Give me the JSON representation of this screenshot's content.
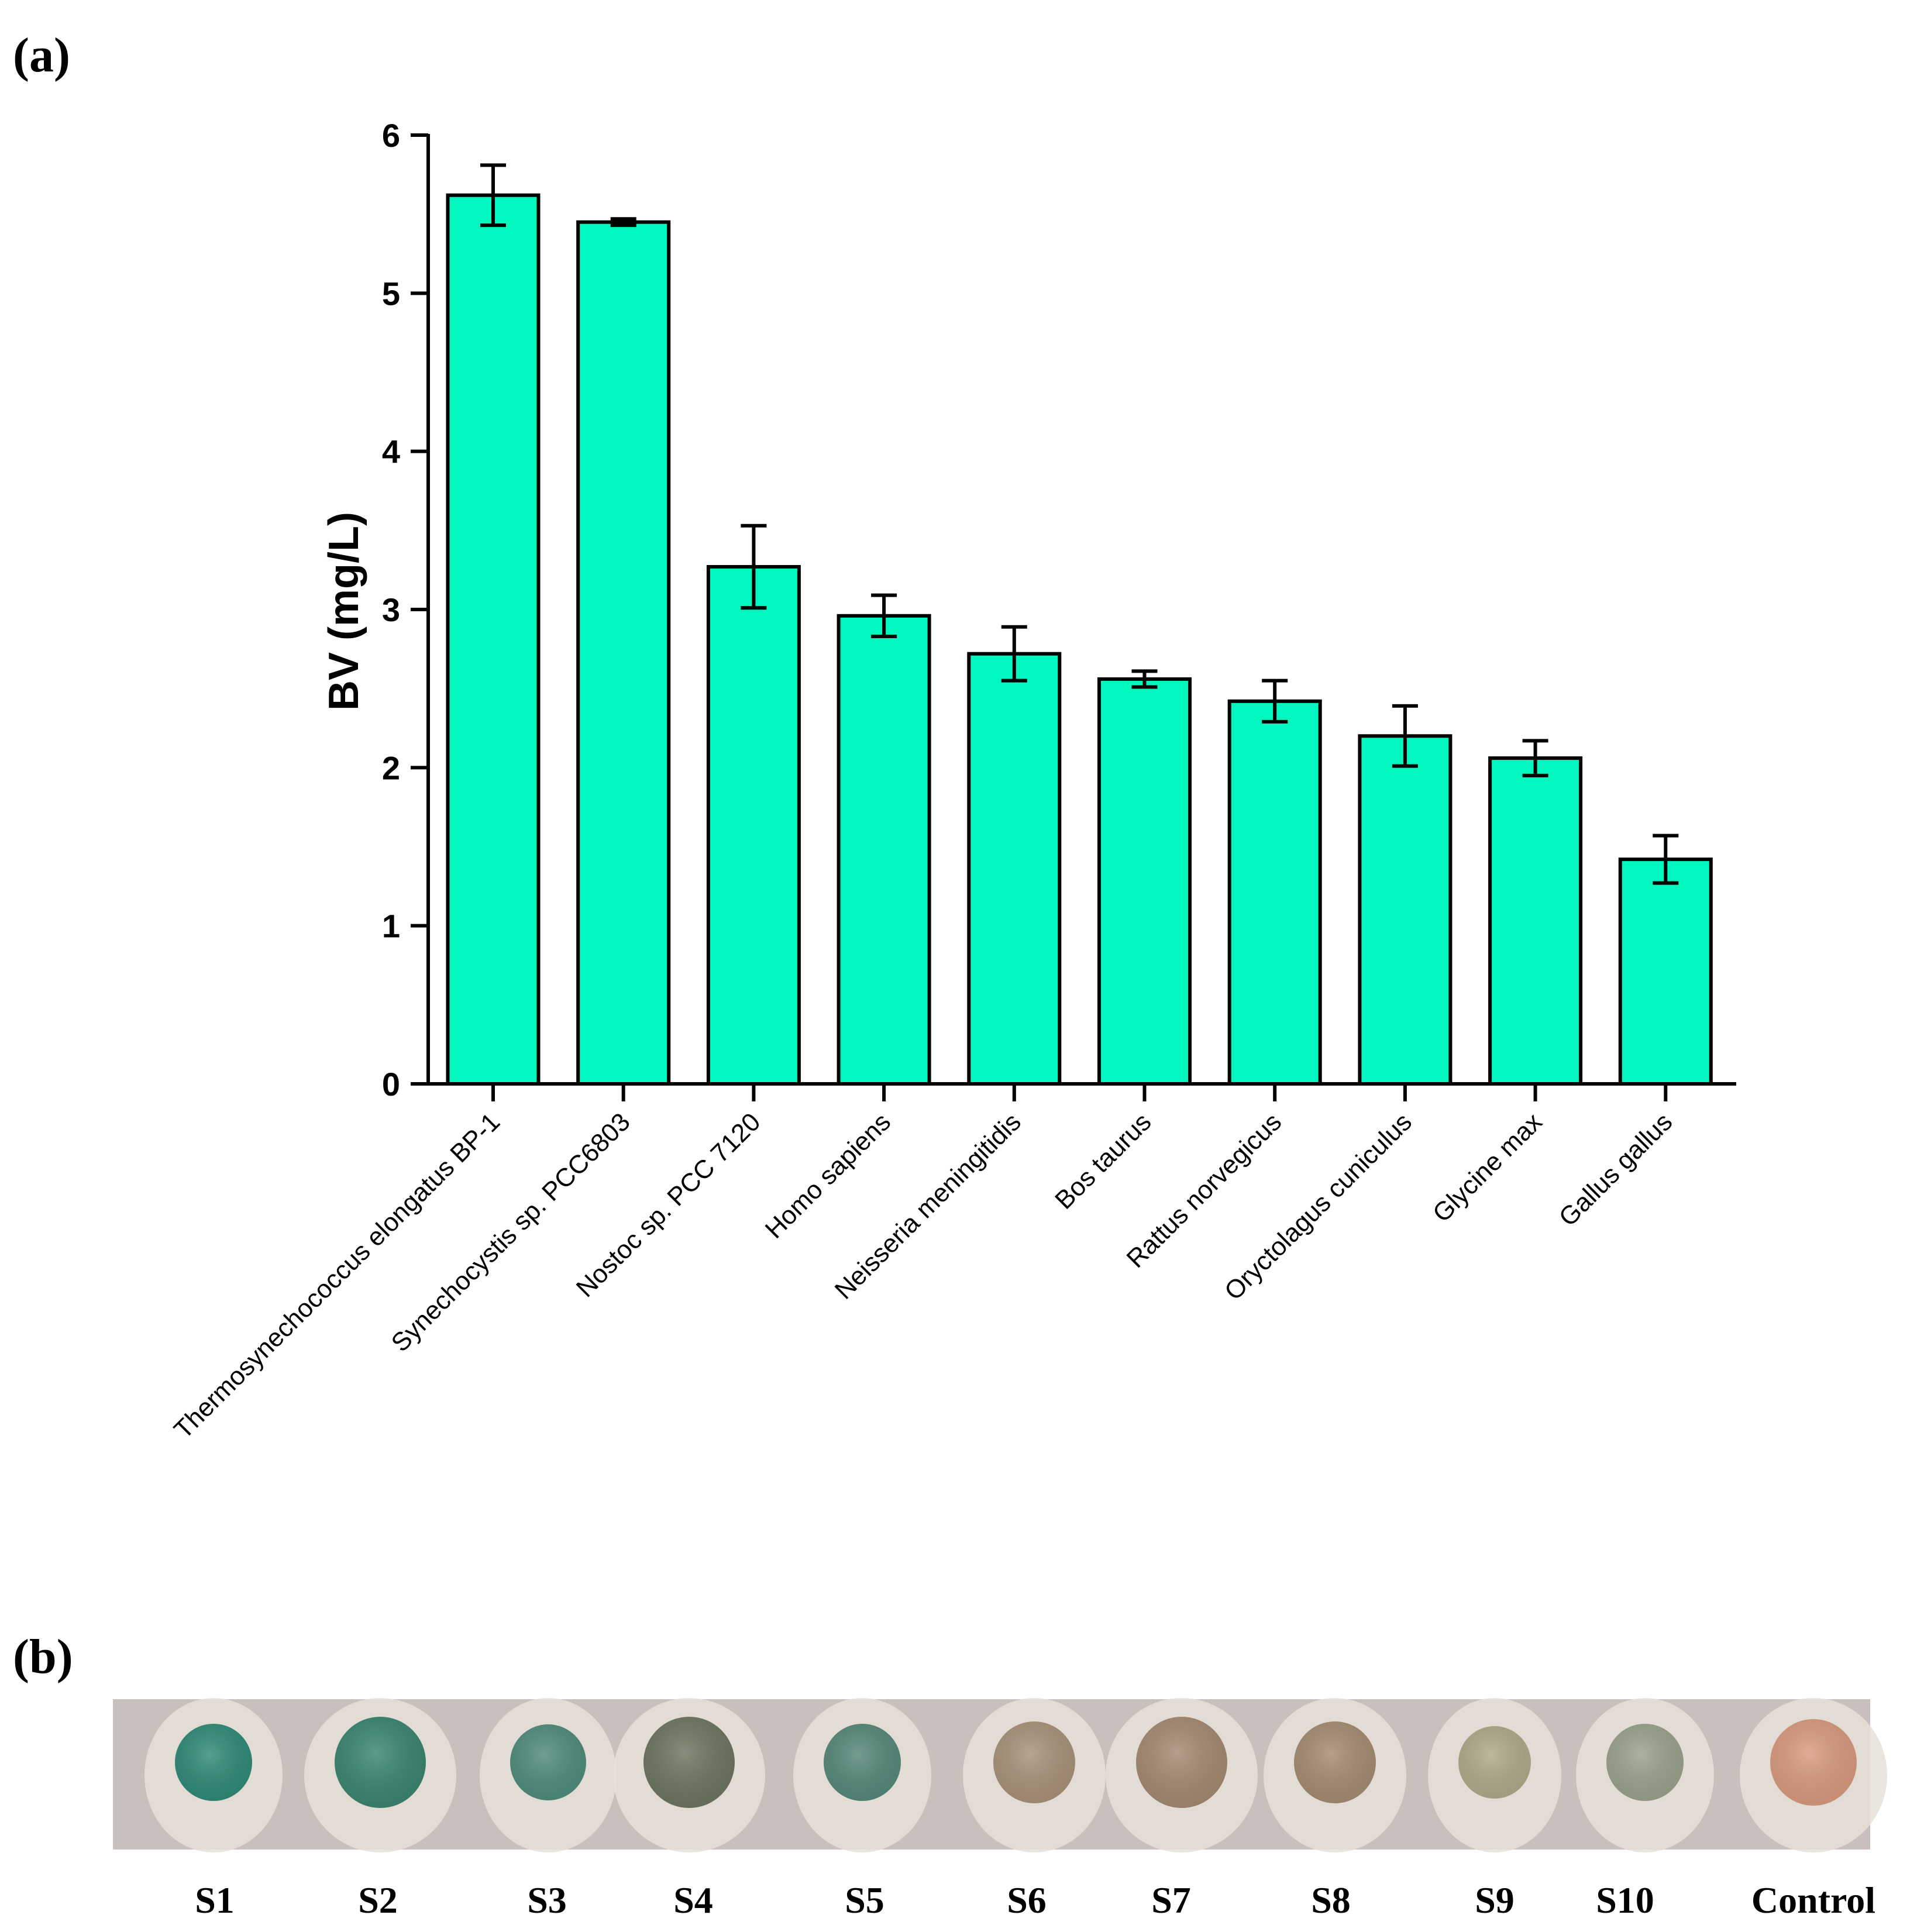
{
  "panel_a_label": "(a)",
  "panel_b_label": "(b)",
  "colors": {
    "bar_fill": "#00f7bf",
    "axis": "#000000",
    "strip_bg": "#c9bfbd"
  },
  "chart_data": {
    "type": "bar",
    "title": "",
    "xlabel": "",
    "ylabel": "BV (mg/L)",
    "ylim": [
      0,
      6
    ],
    "yticks": [
      "0",
      "1",
      "2",
      "3",
      "4",
      "5",
      "6"
    ],
    "categories": [
      "Thermosynechococcus elongatus BP-1",
      "Synechocystis sp. PCC6803",
      "Nostoc sp. PCC 7120",
      "Homo sapiens",
      "Neisseria meningitidis",
      "Bos taurus",
      "Rattus norvegicus",
      "Oryctolagus cuniculus",
      "Glycine max",
      "Gallus gallus"
    ],
    "values": [
      5.62,
      5.45,
      3.27,
      2.96,
      2.72,
      2.56,
      2.42,
      2.2,
      2.06,
      1.42
    ],
    "errors": [
      0.19,
      0.02,
      0.26,
      0.13,
      0.17,
      0.05,
      0.13,
      0.19,
      0.11,
      0.15
    ]
  },
  "samples": {
    "labels": [
      "S1",
      "S2",
      "S3",
      "S4",
      "S5",
      "S6",
      "S7",
      "S8",
      "S9",
      "S10",
      "Control"
    ],
    "colors": [
      "#2f8a78",
      "#3a8570",
      "#4f8c7c",
      "#6d7560",
      "#56887a",
      "#a8927a",
      "#a38a72",
      "#a48c72",
      "#aeaa8a",
      "#9aa28c",
      "#d89a7e"
    ]
  }
}
